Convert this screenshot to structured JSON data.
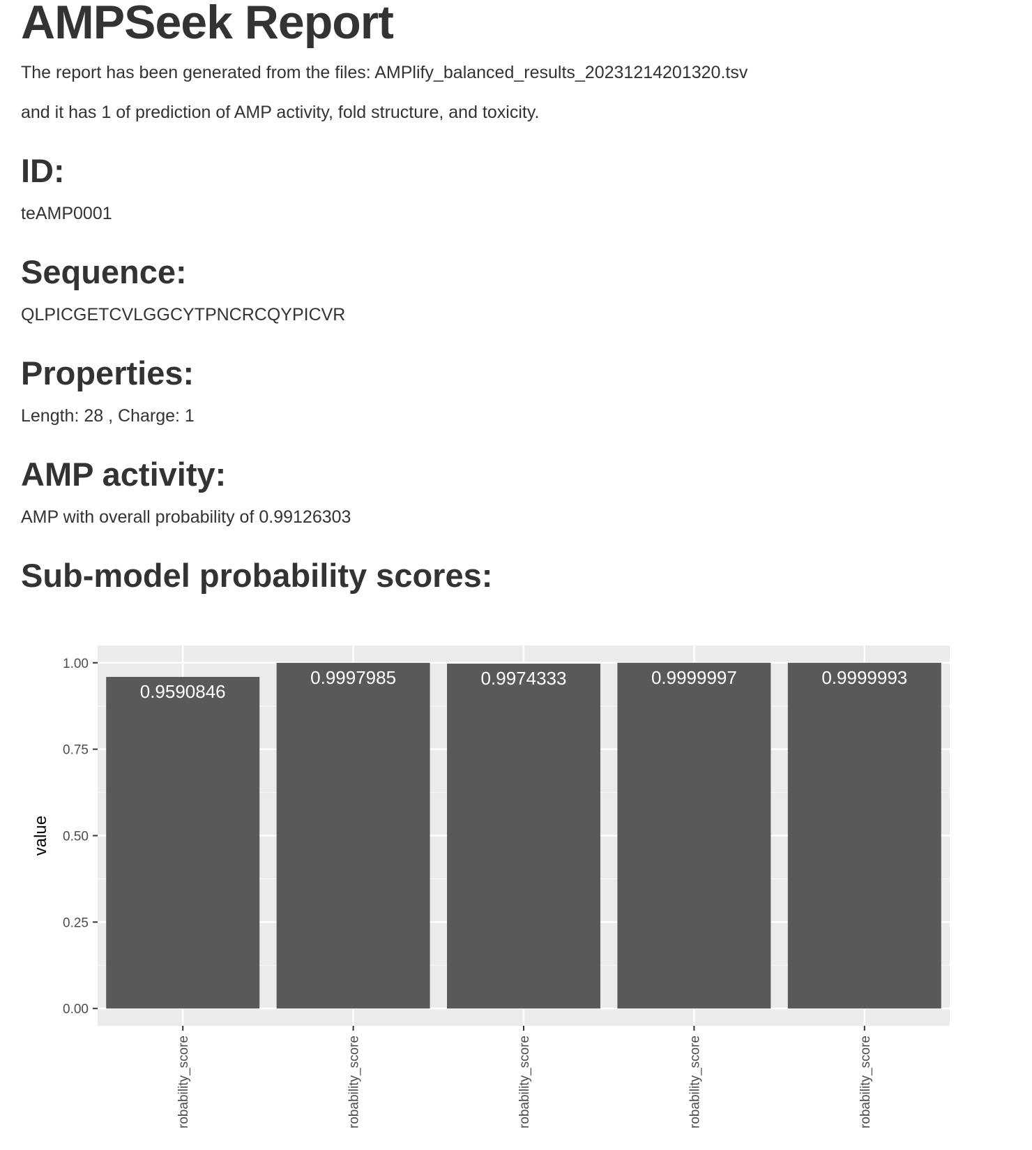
{
  "report": {
    "title": "AMPSeek Report",
    "intro_line1": "The report has been generated from the files: AMPlify_balanced_results_20231214201320.tsv",
    "intro_line2": "and it has 1 of prediction of AMP activity, fold structure, and toxicity."
  },
  "id_section": {
    "heading": "ID:",
    "value": "teAMP0001"
  },
  "sequence_section": {
    "heading": "Sequence:",
    "value": "QLPICGETCVLGGCYTPNCRCQYPICVR"
  },
  "properties_section": {
    "heading": "Properties:",
    "value": "Length: 28 , Charge: 1"
  },
  "amp_section": {
    "heading": "AMP activity:",
    "value": "AMP with overall probability of 0.99126303"
  },
  "submodel_section": {
    "heading": "Sub-model probability scores:"
  },
  "chart_data": {
    "type": "bar",
    "title": "",
    "xlabel": "",
    "ylabel": "value",
    "categories": [
      "robability_score",
      "robability_score",
      "robability_score",
      "robability_score",
      "robability_score"
    ],
    "values": [
      0.9590846,
      0.9997985,
      0.9974333,
      0.9999997,
      0.9999993
    ],
    "data_labels": [
      "0.9590846",
      "0.9997985",
      "0.9974333",
      "0.9999997",
      "0.9999993"
    ],
    "ylim": [
      -0.05,
      1.05
    ],
    "yticks": [
      0,
      0.25,
      0.5,
      0.75,
      1.0
    ],
    "ytick_labels": [
      "0.00",
      "0.25",
      "0.50",
      "0.75",
      "1.00"
    ],
    "grid": true,
    "colors": {
      "panel_background": "#ebebeb",
      "grid_major": "#ffffff",
      "grid_minor": "#f5f5f5",
      "bar_fill": "#595959",
      "label_text": "#ffffff",
      "tick": "#333333"
    }
  }
}
